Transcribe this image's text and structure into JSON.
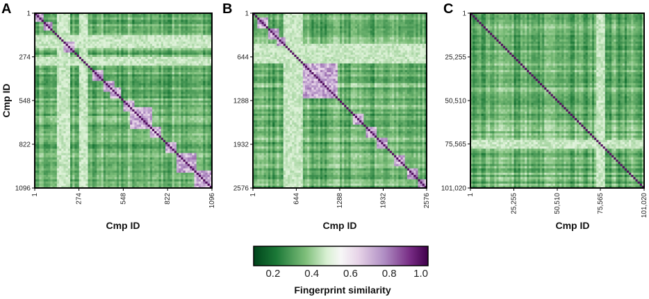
{
  "chart_data": [
    {
      "panel": "A",
      "type": "heatmap",
      "xlabel": "Cmp ID",
      "ylabel": "Cmp ID",
      "n": 1096,
      "ticks": [
        1,
        274,
        548,
        822,
        1096
      ],
      "tick_labels": [
        "1",
        "274",
        "548",
        "822",
        "1096"
      ],
      "diagonal_clusters": [
        [
          1,
          30
        ],
        [
          60,
          90
        ],
        [
          180,
          230
        ],
        [
          360,
          410
        ],
        [
          430,
          470
        ],
        [
          480,
          520
        ],
        [
          560,
          600
        ],
        [
          600,
          700
        ],
        [
          720,
          760
        ],
        [
          820,
          860
        ],
        [
          880,
          980
        ],
        [
          1000,
          1080
        ]
      ],
      "light_bands": [
        [
          150,
          200
        ],
        [
          280,
          310
        ]
      ]
    },
    {
      "panel": "B",
      "type": "heatmap",
      "xlabel": "Cmp ID",
      "ylabel": "",
      "n": 2576,
      "ticks": [
        1,
        644,
        1288,
        1932,
        2576
      ],
      "tick_labels": [
        "1",
        "644",
        "1288",
        "1932",
        "2576"
      ],
      "diagonal_clusters": [
        [
          80,
          180
        ],
        [
          250,
          330
        ],
        [
          380,
          440
        ],
        [
          760,
          1200
        ],
        [
          1500,
          1600
        ],
        [
          1700,
          1800
        ],
        [
          1850,
          1950
        ],
        [
          2100,
          2200
        ],
        [
          2300,
          2400
        ],
        [
          2450,
          2560
        ]
      ],
      "light_bands": [
        [
          480,
          640
        ],
        [
          640,
          700
        ]
      ]
    },
    {
      "panel": "C",
      "type": "heatmap",
      "xlabel": "Cmp ID",
      "ylabel": "",
      "n": 101020,
      "ticks": [
        1,
        25255,
        50510,
        75565,
        101020
      ],
      "tick_labels": [
        "1",
        "25,255",
        "50,510",
        "75,565",
        "101,020"
      ],
      "diagonal_clusters": [],
      "light_bands": [
        [
          73500,
          76500
        ],
        [
          73500,
          76500
        ]
      ]
    }
  ],
  "colorbar": {
    "title": "Fingerprint similarity",
    "min": 0.1,
    "max": 1.0,
    "ticks": [
      0.2,
      0.4,
      0.6,
      0.8,
      1.0
    ],
    "tick_labels": [
      "0.2",
      "0.4",
      "0.6",
      "0.8",
      "1.0"
    ],
    "colors": [
      "#00441b",
      "#1b7837",
      "#7fbf7b",
      "#d9f0d3",
      "#f7f7f7",
      "#e7d4e8",
      "#af8dc3",
      "#762a83",
      "#40004b"
    ]
  }
}
